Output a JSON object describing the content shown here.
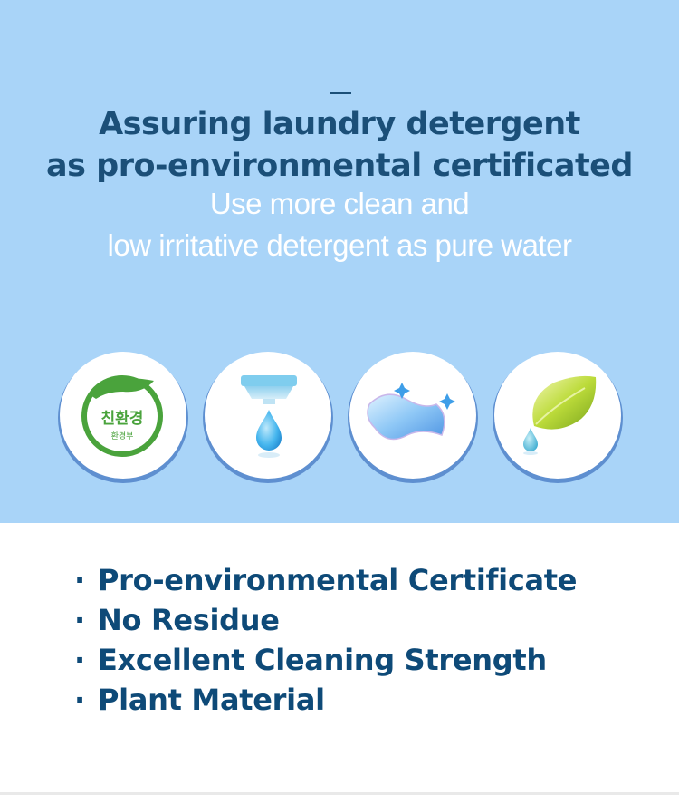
{
  "header": {
    "title_line1": "Assuring laundry detergent",
    "title_line2": "as pro-environmental certificated",
    "subtitle_line1": "Use more clean and",
    "subtitle_line2": "low irritative detergent as pure water"
  },
  "icons": [
    {
      "name": "eco-certification-mark-icon",
      "label": "친환경",
      "sublabel": "환경부"
    },
    {
      "name": "water-drop-dispenser-icon"
    },
    {
      "name": "clean-cloth-sparkle-icon"
    },
    {
      "name": "leaf-drop-icon"
    }
  ],
  "features": [
    {
      "bullet": "·",
      "text": "Pro-environmental Certificate"
    },
    {
      "bullet": "·",
      "text": "No Residue"
    },
    {
      "bullet": "·",
      "text": "Excellent Cleaning Strength"
    },
    {
      "bullet": "·",
      "text": "Plant Material"
    }
  ],
  "colors": {
    "background_top": "#a9d4f8",
    "title": "#1b4f78",
    "feature_text": "#0e4a78",
    "circle_ring": "#5e8fd0",
    "eco_green": "#4aa33c"
  }
}
